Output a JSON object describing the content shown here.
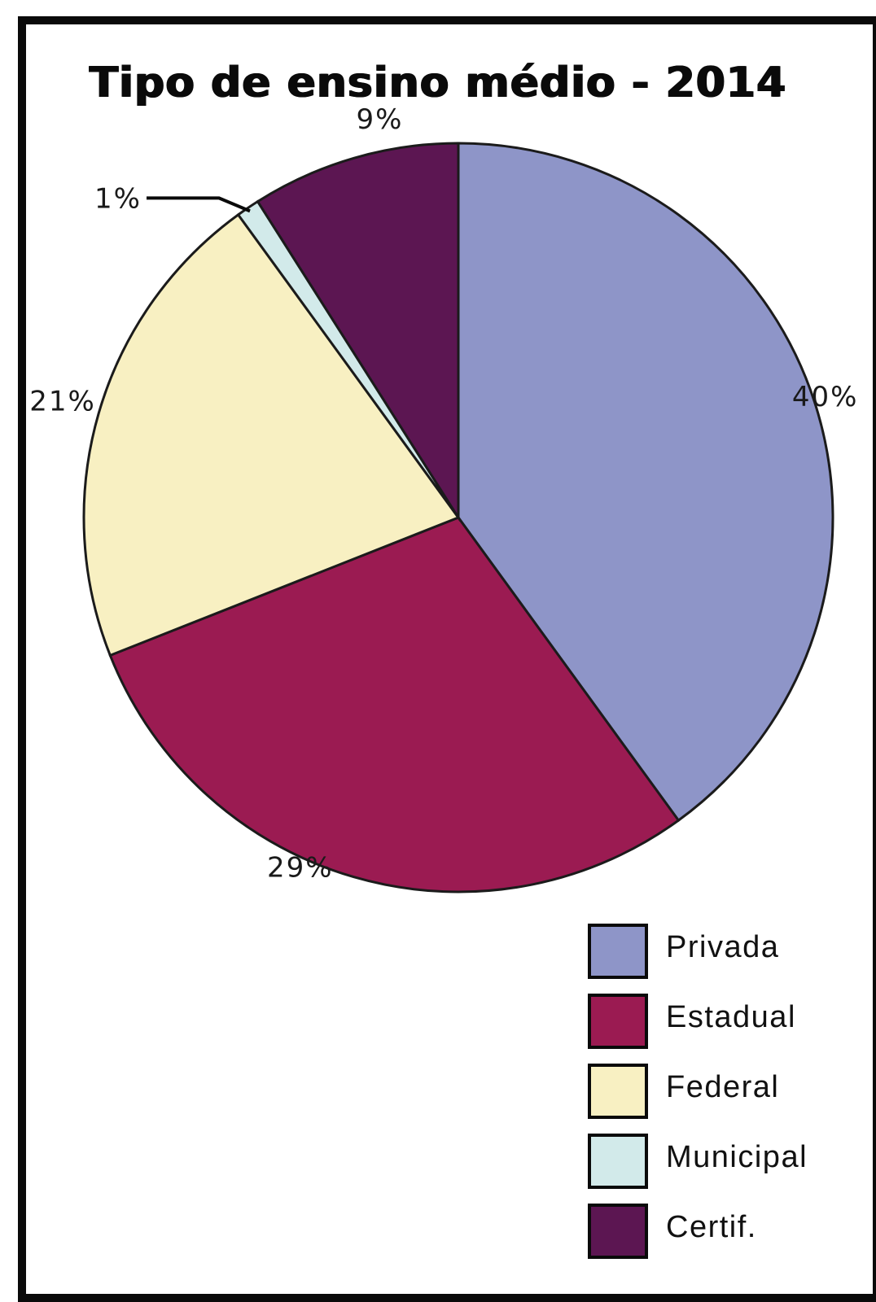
{
  "chart_data": {
    "type": "pie",
    "title": "Tipo de ensino médio - 2014",
    "slices": [
      {
        "label": "Privada",
        "value": 40,
        "value_label": "40%",
        "color": "#8E95C8"
      },
      {
        "label": "Estadual",
        "value": 29,
        "value_label": "29%",
        "color": "#9B1B52"
      },
      {
        "label": "Federal",
        "value": 21,
        "value_label": "21%",
        "color": "#F8F0C2"
      },
      {
        "label": "Municipal",
        "value": 1,
        "value_label": "1%",
        "color": "#D2EAEA"
      },
      {
        "label": "Certif.",
        "value": 9,
        "value_label": "9%",
        "color": "#5C1652"
      }
    ],
    "legend_position": "bottom-right"
  }
}
